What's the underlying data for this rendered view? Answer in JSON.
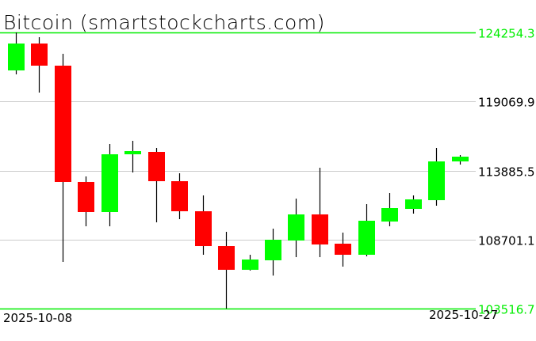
{
  "chart_data": {
    "type": "candlestick",
    "title": "Bitcoin (smartstockcharts.com)",
    "x_start_label": "2025-10-08",
    "x_end_label": "2025-10-27",
    "ylim": [
      103516.7,
      124254.3
    ],
    "y_ticks": [
      {
        "value": 124254.3,
        "label": "124254.3",
        "color": "#00ee00"
      },
      {
        "value": 119069.9,
        "label": "119069.9",
        "color": "#000000"
      },
      {
        "value": 113885.5,
        "label": "113885.5",
        "color": "#000000"
      },
      {
        "value": 108701.1,
        "label": "108701.1",
        "color": "#000000"
      },
      {
        "value": 103516.7,
        "label": "103516.7",
        "color": "#00ee00"
      }
    ],
    "grid": true,
    "colors": {
      "up": "#00ff00",
      "down": "#ff0000",
      "wick": "#000000",
      "grid": "#cccccc",
      "bound": "#00ee00"
    },
    "candles": [
      {
        "date": "2025-10-08",
        "open": 121402,
        "high": 124254,
        "low": 121105,
        "close": 123422
      },
      {
        "date": "2025-10-09",
        "open": 123422,
        "high": 123898,
        "low": 119738,
        "close": 121759
      },
      {
        "date": "2025-10-10",
        "open": 121759,
        "high": 122650,
        "low": 107022,
        "close": 113024
      },
      {
        "date": "2025-10-11",
        "open": 113024,
        "high": 113440,
        "low": 109696,
        "close": 110766
      },
      {
        "date": "2025-10-12",
        "open": 110766,
        "high": 115876,
        "low": 109696,
        "close": 115104
      },
      {
        "date": "2025-10-13",
        "open": 115104,
        "high": 116114,
        "low": 113737,
        "close": 115341
      },
      {
        "date": "2025-10-14",
        "open": 115282,
        "high": 115579,
        "low": 109993,
        "close": 113083
      },
      {
        "date": "2025-10-15",
        "open": 113083,
        "high": 113677,
        "low": 110231,
        "close": 110825
      },
      {
        "date": "2025-10-16",
        "open": 110825,
        "high": 112014,
        "low": 107557,
        "close": 108210
      },
      {
        "date": "2025-10-17",
        "open": 108210,
        "high": 109280,
        "low": 103517,
        "close": 106428
      },
      {
        "date": "2025-10-18",
        "open": 106428,
        "high": 107557,
        "low": 106368,
        "close": 107200
      },
      {
        "date": "2025-10-19",
        "open": 107141,
        "high": 109518,
        "low": 105992,
        "close": 108686
      },
      {
        "date": "2025-10-20",
        "open": 108626,
        "high": 111776,
        "low": 107378,
        "close": 110587
      },
      {
        "date": "2025-10-21",
        "open": 110587,
        "high": 114093,
        "low": 107378,
        "close": 108329
      },
      {
        "date": "2025-10-22",
        "open": 108389,
        "high": 109221,
        "low": 106666,
        "close": 107557
      },
      {
        "date": "2025-10-23",
        "open": 107557,
        "high": 111360,
        "low": 107438,
        "close": 110112
      },
      {
        "date": "2025-10-24",
        "open": 110053,
        "high": 112192,
        "low": 109696,
        "close": 111063
      },
      {
        "date": "2025-10-25",
        "open": 111003,
        "high": 112014,
        "low": 110647,
        "close": 111716
      },
      {
        "date": "2025-10-26",
        "open": 111657,
        "high": 115579,
        "low": 111241,
        "close": 114568
      },
      {
        "date": "2025-10-27",
        "open": 114568,
        "high": 115044,
        "low": 114331,
        "close": 114925
      }
    ]
  }
}
